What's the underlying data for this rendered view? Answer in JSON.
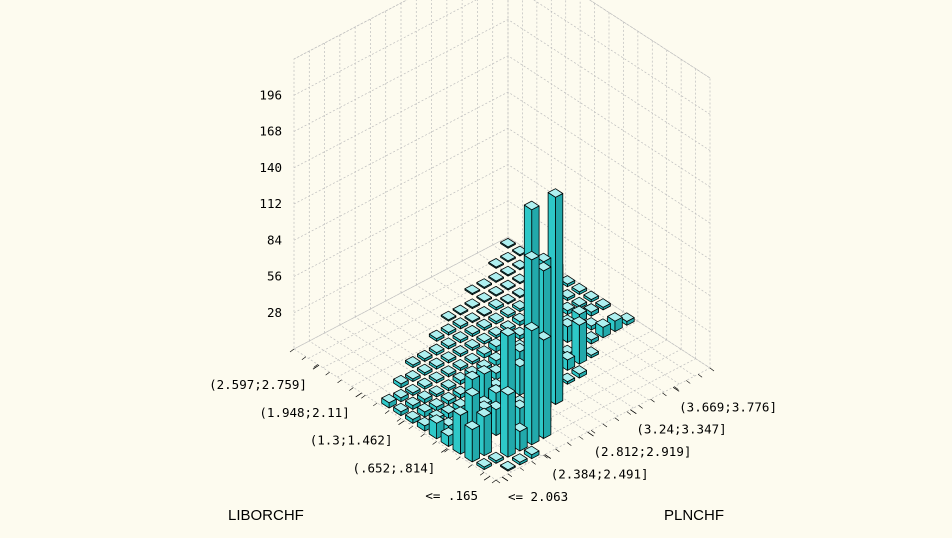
{
  "chart_data": {
    "type": "bar3d",
    "x_axis": {
      "label": "PLNCHF",
      "tick_labels": [
        "<= 2.063",
        "(2.384;2.491]",
        "(2.812;2.919]",
        "(3.24;3.347]",
        "(3.669;3.776]"
      ]
    },
    "y_axis": {
      "label": "LIBORCHF",
      "tick_labels": [
        "<= .165",
        "(.652;.814]",
        "(1.3;1.462]",
        "(1.948;2.11]",
        "(2.597;2.759]"
      ]
    },
    "z_axis": {
      "ticks": [
        28,
        56,
        84,
        112,
        140,
        168,
        196
      ],
      "range": [
        0,
        224
      ]
    },
    "grid": true,
    "bar_color": "#2ec8c8",
    "nx": 18,
    "ny": 17,
    "cells": [
      [
        0,
        0,
        0
      ],
      [
        1,
        0,
        1
      ],
      [
        2,
        0,
        2
      ],
      [
        3,
        0,
        3
      ],
      [
        4,
        1,
        88
      ],
      [
        5,
        1,
        76
      ],
      [
        6,
        2,
        2
      ],
      [
        7,
        3,
        115
      ],
      [
        8,
        3,
        160
      ],
      [
        9,
        4,
        20
      ],
      [
        10,
        4,
        2
      ],
      [
        11,
        4,
        3
      ],
      [
        12,
        5,
        30
      ],
      [
        13,
        5,
        2
      ],
      [
        14,
        6,
        3
      ],
      [
        15,
        6,
        8
      ],
      [
        16,
        6,
        8
      ],
      [
        17,
        6,
        3
      ],
      [
        0,
        1,
        2
      ],
      [
        1,
        1,
        2
      ],
      [
        2,
        1,
        48
      ],
      [
        3,
        1,
        15
      ],
      [
        4,
        2,
        22
      ],
      [
        5,
        2,
        132
      ],
      [
        6,
        3,
        160
      ],
      [
        7,
        3,
        108
      ],
      [
        8,
        4,
        10
      ],
      [
        9,
        5,
        35
      ],
      [
        10,
        5,
        4
      ],
      [
        11,
        5,
        8
      ],
      [
        12,
        6,
        2
      ],
      [
        13,
        6,
        10
      ],
      [
        14,
        7,
        4
      ],
      [
        15,
        7,
        3
      ],
      [
        16,
        8,
        3
      ],
      [
        17,
        8,
        2
      ],
      [
        0,
        2,
        25
      ],
      [
        1,
        2,
        30
      ],
      [
        2,
        3,
        25
      ],
      [
        3,
        3,
        20
      ],
      [
        4,
        3,
        72
      ],
      [
        5,
        4,
        12
      ],
      [
        6,
        4,
        4
      ],
      [
        7,
        5,
        22
      ],
      [
        8,
        5,
        5
      ],
      [
        9,
        6,
        30
      ],
      [
        10,
        6,
        2
      ],
      [
        11,
        6,
        15
      ],
      [
        12,
        7,
        62
      ],
      [
        13,
        7,
        12
      ],
      [
        14,
        7,
        4
      ],
      [
        15,
        8,
        6
      ],
      [
        16,
        8,
        3
      ],
      [
        17,
        9,
        2
      ],
      [
        0,
        3,
        30
      ],
      [
        1,
        3,
        40
      ],
      [
        2,
        4,
        42
      ],
      [
        3,
        4,
        18
      ],
      [
        4,
        4,
        22
      ],
      [
        5,
        5,
        10
      ],
      [
        6,
        5,
        5
      ],
      [
        7,
        6,
        18
      ],
      [
        8,
        6,
        8
      ],
      [
        9,
        7,
        12
      ],
      [
        10,
        7,
        5
      ],
      [
        11,
        7,
        32
      ],
      [
        12,
        8,
        4
      ],
      [
        13,
        8,
        8
      ],
      [
        14,
        8,
        4
      ],
      [
        15,
        9,
        3
      ],
      [
        16,
        9,
        2
      ],
      [
        17,
        10,
        2
      ],
      [
        0,
        4,
        8
      ],
      [
        1,
        4,
        10
      ],
      [
        2,
        5,
        8
      ],
      [
        3,
        5,
        12
      ],
      [
        4,
        6,
        12
      ],
      [
        5,
        6,
        20
      ],
      [
        6,
        6,
        5
      ],
      [
        7,
        7,
        5
      ],
      [
        8,
        7,
        3
      ],
      [
        9,
        8,
        5
      ],
      [
        10,
        8,
        4
      ],
      [
        11,
        8,
        8
      ],
      [
        12,
        9,
        6
      ],
      [
        13,
        9,
        4
      ],
      [
        14,
        9,
        3
      ],
      [
        15,
        10,
        2
      ],
      [
        16,
        10,
        2
      ],
      [
        17,
        11,
        2
      ],
      [
        0,
        5,
        12
      ],
      [
        1,
        5,
        5
      ],
      [
        2,
        6,
        4
      ],
      [
        3,
        6,
        4
      ],
      [
        4,
        7,
        3
      ],
      [
        5,
        7,
        6
      ],
      [
        6,
        7,
        4
      ],
      [
        7,
        8,
        3
      ],
      [
        8,
        8,
        4
      ],
      [
        9,
        9,
        4
      ],
      [
        10,
        9,
        4
      ],
      [
        11,
        9,
        3
      ],
      [
        12,
        10,
        3
      ],
      [
        13,
        10,
        2
      ],
      [
        14,
        10,
        2
      ],
      [
        15,
        11,
        2
      ],
      [
        16,
        11,
        1
      ],
      [
        17,
        12,
        1
      ],
      [
        0,
        6,
        4
      ],
      [
        1,
        6,
        5
      ],
      [
        2,
        7,
        3
      ],
      [
        3,
        7,
        3
      ],
      [
        4,
        8,
        2
      ],
      [
        5,
        8,
        3
      ],
      [
        6,
        8,
        3
      ],
      [
        7,
        9,
        2
      ],
      [
        8,
        9,
        3
      ],
      [
        9,
        10,
        2
      ],
      [
        10,
        10,
        2
      ],
      [
        11,
        10,
        2
      ],
      [
        12,
        11,
        2
      ],
      [
        13,
        11,
        2
      ],
      [
        14,
        11,
        1
      ],
      [
        15,
        12,
        1
      ],
      [
        16,
        12,
        1
      ],
      [
        17,
        13,
        1
      ],
      [
        0,
        7,
        3
      ],
      [
        1,
        7,
        4
      ],
      [
        2,
        8,
        3
      ],
      [
        3,
        8,
        2
      ],
      [
        4,
        9,
        2
      ],
      [
        5,
        9,
        2
      ],
      [
        6,
        9,
        2
      ],
      [
        7,
        10,
        2
      ],
      [
        8,
        10,
        2
      ],
      [
        9,
        11,
        2
      ],
      [
        10,
        11,
        2
      ],
      [
        11,
        11,
        2
      ],
      [
        12,
        12,
        2
      ],
      [
        13,
        12,
        1
      ],
      [
        14,
        12,
        1
      ],
      [
        15,
        13,
        1
      ],
      [
        16,
        13,
        1
      ],
      [
        17,
        14,
        1
      ],
      [
        0,
        8,
        3
      ],
      [
        1,
        8,
        3
      ],
      [
        2,
        9,
        2
      ],
      [
        3,
        9,
        2
      ],
      [
        4,
        10,
        2
      ],
      [
        5,
        10,
        2
      ],
      [
        6,
        10,
        2
      ],
      [
        7,
        11,
        2
      ],
      [
        8,
        11,
        2
      ],
      [
        9,
        12,
        2
      ],
      [
        10,
        12,
        1
      ],
      [
        11,
        12,
        1
      ],
      [
        12,
        13,
        1
      ],
      [
        13,
        13,
        1
      ],
      [
        14,
        13,
        1
      ],
      [
        15,
        14,
        1
      ],
      [
        16,
        14,
        1
      ],
      [
        17,
        15,
        1
      ],
      [
        0,
        9,
        4
      ],
      [
        1,
        9,
        3
      ],
      [
        2,
        10,
        3
      ],
      [
        3,
        10,
        2
      ],
      [
        4,
        11,
        2
      ],
      [
        5,
        11,
        2
      ],
      [
        6,
        11,
        2
      ],
      [
        7,
        12,
        2
      ],
      [
        8,
        12,
        2
      ],
      [
        9,
        13,
        1
      ],
      [
        10,
        13,
        1
      ],
      [
        11,
        13,
        1
      ],
      [
        12,
        14,
        1
      ],
      [
        13,
        14,
        1
      ],
      [
        14,
        14,
        1
      ],
      [
        15,
        15,
        1
      ],
      [
        16,
        15,
        1
      ],
      [
        17,
        16,
        1
      ]
    ]
  }
}
